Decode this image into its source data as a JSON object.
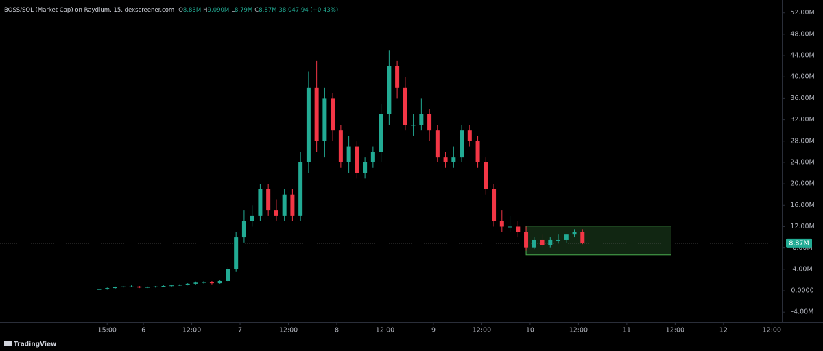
{
  "chart_data": {
    "type": "candlestick",
    "title": "BOSS/SOL (Market Cap) on Raydium, 15, dexscreener.com",
    "header_stats": [
      {
        "label": "O",
        "value": "8.83M"
      },
      {
        "label": "H",
        "value": "9.090M"
      },
      {
        "label": "L",
        "value": "8.79M"
      },
      {
        "label": "C",
        "value": "8.87M"
      }
    ],
    "change": "38,047.94 (+0.43%)",
    "footer": "TradingView",
    "up_color": "#22ab94",
    "down_color": "#f23645",
    "x": [
      13,
      15,
      17,
      19,
      21,
      23,
      25,
      27,
      29,
      31,
      33,
      35,
      37,
      39,
      41,
      43,
      45,
      47,
      49,
      51,
      53,
      55,
      57,
      59,
      61,
      63,
      65,
      67,
      69,
      71,
      73,
      75,
      77,
      79,
      81,
      83,
      85,
      87,
      89,
      91,
      93,
      95,
      97,
      99,
      101,
      103,
      105,
      107,
      109,
      111,
      113,
      115,
      117,
      119,
      121,
      123,
      125,
      127,
      129,
      131,
      133
    ],
    "open": [
      0.2,
      0.3,
      0.5,
      0.7,
      0.8,
      0.8,
      0.6,
      0.7,
      0.8,
      0.9,
      1.0,
      1.1,
      1.3,
      1.5,
      1.6,
      1.4,
      1.8,
      4,
      10,
      13,
      14,
      19,
      15,
      14,
      18,
      14,
      24,
      38,
      28,
      36,
      30,
      24,
      27,
      22,
      24,
      26,
      33,
      42,
      38,
      31,
      31,
      33,
      30,
      25,
      24,
      25,
      30,
      28,
      24,
      19,
      13,
      12,
      12,
      11,
      8,
      9.5,
      8.5,
      9.5,
      9.5,
      10.5,
      11
    ],
    "high": [
      0.4,
      0.6,
      0.8,
      0.9,
      1.0,
      0.9,
      0.8,
      0.9,
      1.0,
      1.1,
      1.2,
      1.4,
      1.7,
      1.8,
      1.8,
      2.0,
      4.5,
      11,
      15,
      16,
      20,
      20,
      17,
      19,
      19,
      26,
      41,
      43,
      38,
      37,
      31,
      29,
      28,
      25,
      27,
      35,
      45,
      43,
      40,
      33,
      36,
      34,
      31,
      26,
      27,
      31,
      31,
      29,
      25,
      20,
      15,
      14,
      13,
      12,
      10,
      10.5,
      10,
      10.5,
      10.5,
      11.5,
      11.5
    ],
    "low": [
      0.1,
      0.2,
      0.4,
      0.6,
      0.7,
      0.5,
      0.5,
      0.6,
      0.7,
      0.8,
      0.9,
      1.0,
      1.2,
      1.3,
      1.2,
      1.3,
      1.6,
      3.5,
      9,
      12,
      13,
      14,
      13,
      13,
      13,
      13,
      22,
      26,
      25,
      28,
      23,
      22,
      21,
      21,
      23,
      24,
      31,
      36,
      30,
      29,
      30,
      28,
      24,
      23,
      23,
      24,
      27,
      23,
      18,
      12,
      11,
      11,
      10,
      7.5,
      7.8,
      8,
      8,
      8.8,
      9,
      10,
      8.7
    ],
    "close": [
      0.3,
      0.5,
      0.7,
      0.8,
      0.8,
      0.6,
      0.7,
      0.8,
      0.9,
      1.0,
      1.1,
      1.3,
      1.5,
      1.6,
      1.4,
      1.8,
      4,
      10,
      13,
      14,
      19,
      15,
      14,
      18,
      14,
      24,
      38,
      28,
      36,
      30,
      24,
      27,
      22,
      24,
      26,
      33,
      42,
      38,
      31,
      31,
      33,
      30,
      25,
      24,
      25,
      30,
      28,
      24,
      19,
      13,
      12,
      12,
      11,
      8,
      9.5,
      8.5,
      9.5,
      9.5,
      10.5,
      11,
      8.87
    ],
    "last_price": {
      "value": 8.87,
      "label": "8.87M",
      "color": "#22ab94"
    },
    "highlight_box": {
      "x": [
        119,
        155
      ],
      "y": [
        6.7,
        12.1
      ],
      "color": "#4caf50"
    },
    "xlim": [
      -11.6,
      182.5
    ],
    "ylim": [
      -5.9,
      54.4
    ],
    "xticks": [
      {
        "value": 15,
        "label": "15:00"
      },
      {
        "value": 24,
        "label": "6"
      },
      {
        "value": 36,
        "label": "12:00"
      },
      {
        "value": 48,
        "label": "7"
      },
      {
        "value": 60,
        "label": "12:00"
      },
      {
        "value": 72,
        "label": "8"
      },
      {
        "value": 84,
        "label": "12:00"
      },
      {
        "value": 96,
        "label": "9"
      },
      {
        "value": 108,
        "label": "12:00"
      },
      {
        "value": 120,
        "label": "10"
      },
      {
        "value": 132,
        "label": "12:00"
      },
      {
        "value": 144,
        "label": "11"
      },
      {
        "value": 156,
        "label": "12:00"
      },
      {
        "value": 168,
        "label": "12"
      },
      {
        "value": 180,
        "label": "12:00"
      }
    ],
    "yticks": [
      {
        "value": -4,
        "label": "-4.00M"
      },
      {
        "value": 0,
        "label": "0.0000"
      },
      {
        "value": 4,
        "label": "4.00M"
      },
      {
        "value": 8,
        "label": "8.00M"
      },
      {
        "value": 12,
        "label": "12.00M"
      },
      {
        "value": 16,
        "label": "16.00M"
      },
      {
        "value": 20,
        "label": "20.00M"
      },
      {
        "value": 24,
        "label": "24.00M"
      },
      {
        "value": 28,
        "label": "28.00M"
      },
      {
        "value": 32,
        "label": "32.00M"
      },
      {
        "value": 36,
        "label": "36.00M"
      },
      {
        "value": 40,
        "label": "40.00M"
      },
      {
        "value": 44,
        "label": "44.00M"
      },
      {
        "value": 48,
        "label": "48.00M"
      },
      {
        "value": 52,
        "label": "52.00M"
      }
    ]
  }
}
